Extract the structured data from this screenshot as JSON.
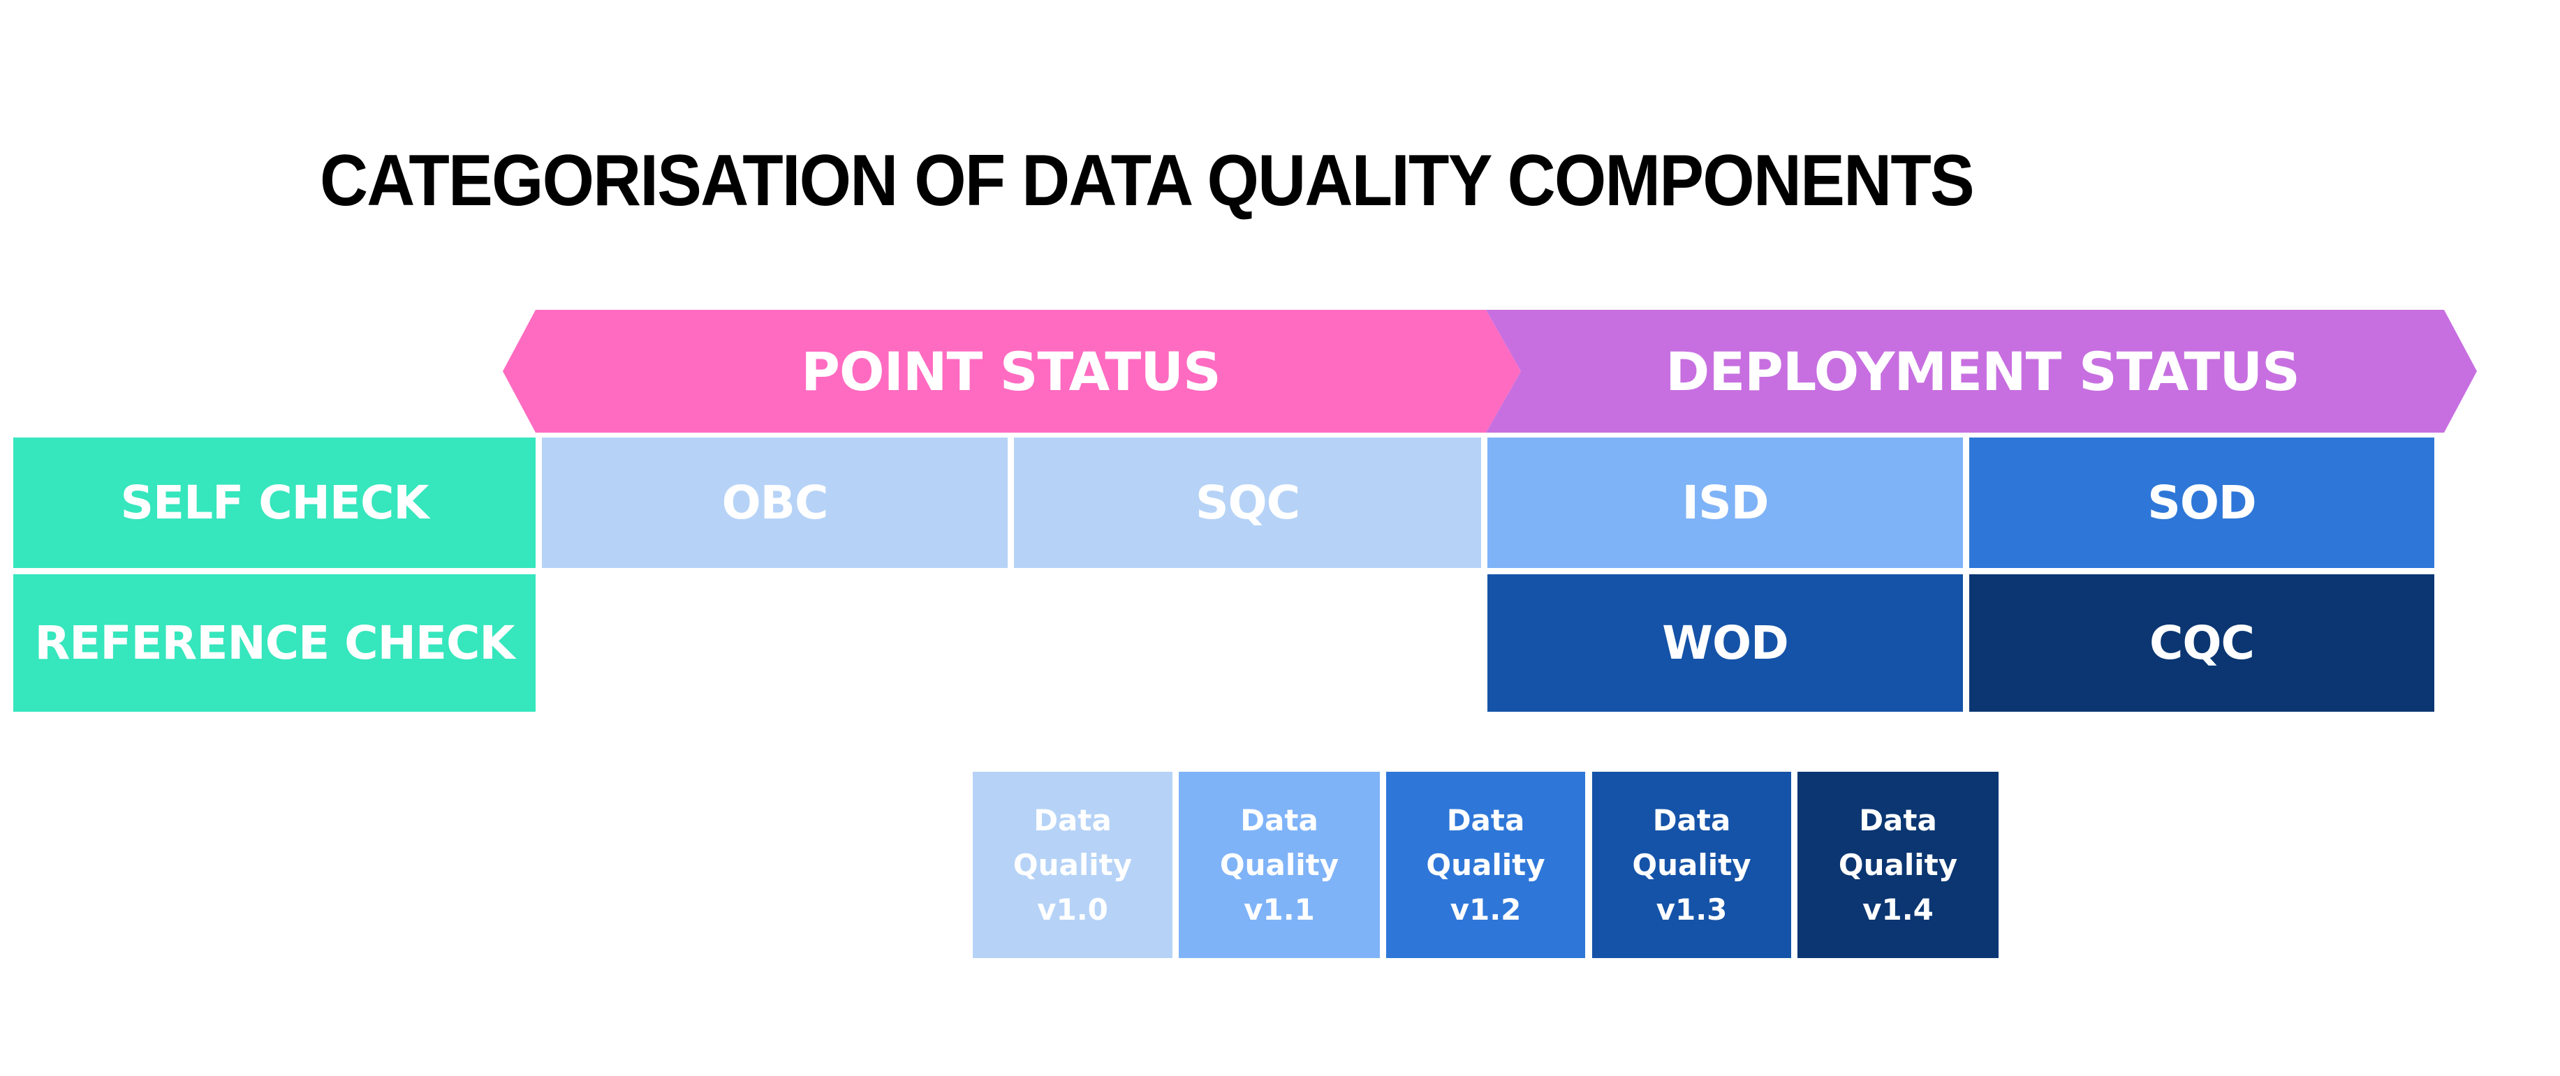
{
  "title": "CATEGORISATION OF DATA QUALITY COMPONENTS",
  "colors": {
    "point_status": "#FF6BC1",
    "deployment_status": "#C76FE0",
    "check_rows": "#36E6BD",
    "v1_0": "#B6D3F7",
    "v1_1": "#7FB3F8",
    "v1_2": "#2E77D8",
    "v1_3": "#1553A8",
    "v1_4": "#0B3672"
  },
  "columns": {
    "point": "POINT STATUS",
    "deployment": "DEPLOYMENT STATUS"
  },
  "rows": {
    "self": "SELF CHECK",
    "reference": "REFERENCE CHECK"
  },
  "cells": {
    "obc": "OBC",
    "sqc": "SQC",
    "isd": "ISD",
    "sod": "SOD",
    "wod": "WOD",
    "cqc": "CQC"
  },
  "legend": [
    {
      "line1": "Data",
      "line2": "Quality",
      "line3": "v1.0"
    },
    {
      "line1": "Data",
      "line2": "Quality",
      "line3": "v1.1"
    },
    {
      "line1": "Data",
      "line2": "Quality",
      "line3": "v1.2"
    },
    {
      "line1": "Data",
      "line2": "Quality",
      "line3": "v1.3"
    },
    {
      "line1": "Data",
      "line2": "Quality",
      "line3": "v1.4"
    }
  ]
}
